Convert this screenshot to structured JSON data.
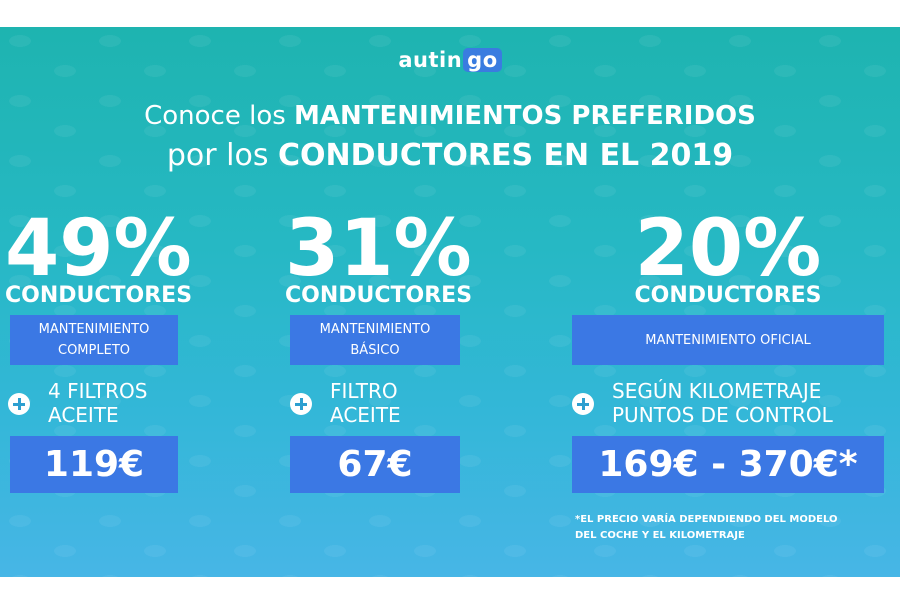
{
  "logo": {
    "text_main": "autin",
    "text_accent": "go"
  },
  "headline": {
    "line1_regular": "Conoce los",
    "line1_bold": "MANTENIMIENTOS PREFERIDOS",
    "line2_regular": "por los",
    "line2_bold": "CONDUCTORES EN EL 2019"
  },
  "plans": [
    {
      "percent": "49%",
      "drivers": "CONDUCTORES",
      "type_line1": "MANTENIMIENTO",
      "type_line2": "COMPLETO",
      "extra_line1": "4 FILTROS",
      "extra_line2": "ACEITE",
      "price": "119€"
    },
    {
      "percent": "31%",
      "drivers": "CONDUCTORES",
      "type_line1": "MANTENIMIENTO",
      "type_line2": "BÁSICO",
      "extra_line1": "FILTRO",
      "extra_line2": "ACEITE",
      "price": "67€"
    },
    {
      "percent": "20%",
      "drivers": "CONDUCTORES",
      "type_line1": "MANTENIMIENTO OFICIAL",
      "extra_line1": "SEGÚN KILOMETRAJE",
      "extra_line2": "PUNTOS DE CONTROL",
      "price": "169€ - 370€*"
    }
  ],
  "footnote": {
    "line1": "*EL PRECIO VARÍA DEPENDIENDO DEL MODELO",
    "line2": "DEL COCHE Y EL KILOMETRAJE"
  },
  "colors": {
    "accent_blue": "#3b78e4",
    "teal_top": "#1eb4b0",
    "blue_bottom": "#47b6e6"
  },
  "icons": [
    "plus-circle-icon"
  ]
}
